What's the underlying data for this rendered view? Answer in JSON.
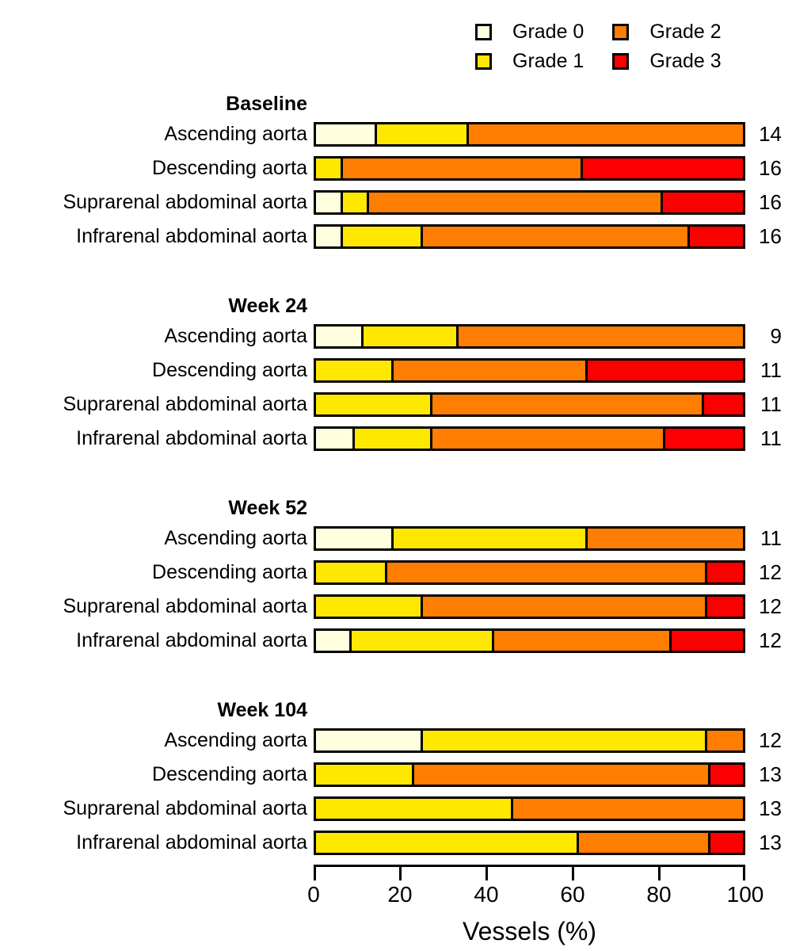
{
  "colors": {
    "grade0": "#FFFFE0",
    "grade1": "#FFE800",
    "grade2": "#FF7D00",
    "grade3": "#FA0000",
    "outline": "#000000",
    "background": "#FFFFFF"
  },
  "legend": {
    "items": [
      {
        "label": "Grade 0",
        "grade": "grade0"
      },
      {
        "label": "Grade 1",
        "grade": "grade1"
      },
      {
        "label": "Grade 2",
        "grade": "grade2"
      },
      {
        "label": "Grade 3",
        "grade": "grade3"
      }
    ]
  },
  "axis": {
    "label": "Vessels (%)",
    "ticks": [
      0,
      20,
      40,
      60,
      80,
      100
    ],
    "range": [
      0,
      100
    ]
  },
  "chart_data": {
    "type": "bar",
    "stacked": true,
    "orientation": "horizontal",
    "xlabel": "Vessels (%)",
    "xlim": [
      0,
      100
    ],
    "grid": false,
    "legend_position": "top-right",
    "series_labels": [
      "Grade 0",
      "Grade 1",
      "Grade 2",
      "Grade 3"
    ],
    "note_right_column": "n vessels per row",
    "sections": [
      {
        "title": "Baseline",
        "rows": [
          {
            "label": "Ascending aorta",
            "n": 14,
            "counts": [
              2,
              3,
              9,
              0
            ]
          },
          {
            "label": "Descending aorta",
            "n": 16,
            "counts": [
              0,
              1,
              9,
              6
            ]
          },
          {
            "label": "Suprarenal abdominal aorta",
            "n": 16,
            "counts": [
              1,
              1,
              11,
              3
            ]
          },
          {
            "label": "Infrarenal abdominal aorta",
            "n": 16,
            "counts": [
              1,
              3,
              10,
              2
            ]
          }
        ]
      },
      {
        "title": "Week 24",
        "rows": [
          {
            "label": "Ascending aorta",
            "n": 9,
            "counts": [
              1,
              2,
              6,
              0
            ]
          },
          {
            "label": "Descending aorta",
            "n": 11,
            "counts": [
              0,
              2,
              5,
              4
            ]
          },
          {
            "label": "Suprarenal abdominal aorta",
            "n": 11,
            "counts": [
              0,
              3,
              7,
              1
            ]
          },
          {
            "label": "Infrarenal abdominal aorta",
            "n": 11,
            "counts": [
              1,
              2,
              6,
              2
            ]
          }
        ]
      },
      {
        "title": "Week 52",
        "rows": [
          {
            "label": "Ascending aorta",
            "n": 11,
            "counts": [
              2,
              5,
              4,
              0
            ]
          },
          {
            "label": "Descending aorta",
            "n": 12,
            "counts": [
              0,
              2,
              9,
              1
            ]
          },
          {
            "label": "Suprarenal abdominal aorta",
            "n": 12,
            "counts": [
              0,
              3,
              8,
              1
            ]
          },
          {
            "label": "Infrarenal abdominal aorta",
            "n": 12,
            "counts": [
              1,
              4,
              5,
              2
            ]
          }
        ]
      },
      {
        "title": "Week 104",
        "rows": [
          {
            "label": "Ascending aorta",
            "n": 12,
            "counts": [
              3,
              8,
              1,
              0
            ]
          },
          {
            "label": "Descending aorta",
            "n": 13,
            "counts": [
              0,
              3,
              9,
              1
            ]
          },
          {
            "label": "Suprarenal abdominal aorta",
            "n": 13,
            "counts": [
              0,
              6,
              7,
              0
            ]
          },
          {
            "label": "Infrarenal abdominal aorta",
            "n": 13,
            "counts": [
              0,
              8,
              4,
              1
            ]
          }
        ]
      }
    ]
  }
}
